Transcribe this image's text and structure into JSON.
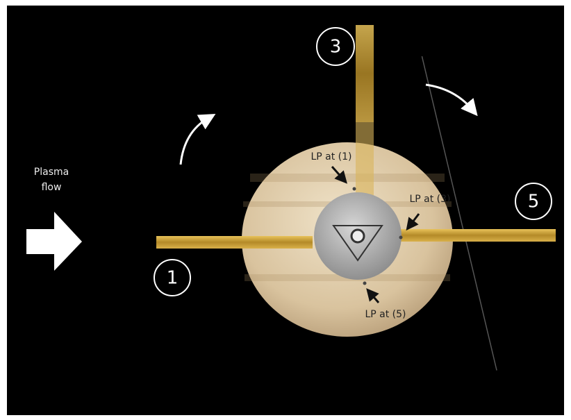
{
  "flow_label": [
    "Plasma",
    "flow"
  ],
  "positions": [
    {
      "label": "3"
    },
    {
      "label": "5"
    },
    {
      "label": "1"
    }
  ],
  "probes": [
    {
      "label": "LP at (1)"
    },
    {
      "label": "LP at (3)"
    },
    {
      "label": "LP at (5)"
    }
  ]
}
